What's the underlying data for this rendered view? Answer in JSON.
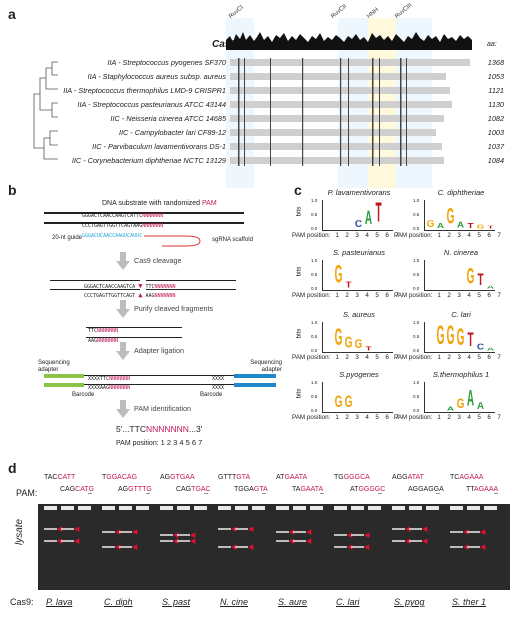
{
  "panel_a": {
    "letter": "a",
    "protein": "Cas9",
    "aa_header": "aa:",
    "domains": [
      "RuvCI",
      "RuvCII",
      "HNH",
      "RuvCIII"
    ],
    "rows": [
      {
        "strain": "IIA - Streptococcus pyogenes SF370",
        "aa": "1368"
      },
      {
        "strain": "IIA - Staphylococcus aureus subsp. aureus",
        "aa": "1053"
      },
      {
        "strain": "IIA - Streptococcus thermophilus LMD-9 CRISPR1",
        "aa": "1121"
      },
      {
        "strain": "IIA - Streptococcus pasteurianus ATCC 43144",
        "aa": "1130"
      },
      {
        "strain": "IIC - Neisseria cinerea ATCC 14685",
        "aa": "1082"
      },
      {
        "strain": "IIC - Campylobacter lari CF89-12",
        "aa": "1003"
      },
      {
        "strain": "IIC - Parvibaculum lavamentivorans DS-1",
        "aa": "1037"
      },
      {
        "strain": "IIC - Corynebacterium diphtheriae NCTC 13129",
        "aa": "1084"
      }
    ]
  },
  "panel_b": {
    "letter": "b",
    "title_prefix": "DNA substrate with randomized ",
    "title_pam": "PAM",
    "seq_top": "GGGACTCAACCAAGTCATTC",
    "seq_top_n": "NNNNNNN",
    "seq_bot": "CCCTGAGTTGGTTCAGTAAG",
    "seq_bot_n": "NNNNNNN",
    "guide_seq": "GGGACUCAACCAAGUCAUUC",
    "guide_label": "20-nt guide",
    "scaffold_label": "sgRNA scaffold",
    "step1": "Cas9 cleavage",
    "cleave_top": "GGGACTCAACCAAGTCA",
    "cleave_top_r": "TTC",
    "cleave_bot": "CCCTGAGTTGGTTCAGT",
    "cleave_bot_r": "AAG",
    "step2": "Purify cleaved fragments",
    "frag_top": "TTC",
    "frag_bot": "AAG",
    "frag_n": "NNNNNNN",
    "step3": "Adapter ligation",
    "seq_adapter": "Sequencing adapter",
    "barcode": "Barcode",
    "xxxx": "XXXX",
    "step4": "PAM identification",
    "pam_seq_prefix": "5'...TTC",
    "pam_seq_n": "NNNNNNN",
    "pam_seq_suffix": "...3'",
    "pam_position_label": "PAM position:",
    "pam_positions": "1 2 3 4 5 6 7"
  },
  "panel_c": {
    "letter": "c",
    "ylabel": "bits",
    "xlabel": "PAM position:",
    "positions": [
      "1",
      "2",
      "3",
      "4",
      "5",
      "6",
      "7"
    ],
    "yticks": [
      "0.0",
      "0.5",
      "1.0"
    ],
    "logos": [
      {
        "name": "P. lavamentivorans"
      },
      {
        "name": "C. diphtheriae"
      },
      {
        "name": "S. pasteurianus"
      },
      {
        "name": "N. cinerea"
      },
      {
        "name": "S. aureus"
      },
      {
        "name": "C. lari"
      },
      {
        "name": "S.pyogenes"
      },
      {
        "name": "S.thermophilus 1"
      }
    ]
  },
  "panel_d": {
    "letter": "d",
    "pam_label": "PAM:",
    "lysate_label": "lysate",
    "cas9_label": "Cas9:",
    "groups": [
      {
        "cas": "P. lava",
        "pams": [
          [
            "TAC",
            "CATT"
          ],
          [
            "CAG",
            "CATG"
          ]
        ]
      },
      {
        "cas": "C. diph",
        "pams": [
          [
            "T",
            "GGACAG"
          ],
          [
            "AG",
            "GTTTG"
          ]
        ]
      },
      {
        "cas": "S. past",
        "pams": [
          [
            "AG",
            "GTGAA"
          ],
          [
            "CAG",
            "TGAC"
          ]
        ]
      },
      {
        "cas": "N. cine",
        "pams": [
          [
            "GTTT",
            "GTA"
          ],
          [
            "TGGA",
            "GTA"
          ]
        ]
      },
      {
        "cas": "S. aure",
        "pams": [
          [
            "AT",
            "GAATA"
          ],
          [
            "TA",
            "GAATA"
          ]
        ]
      },
      {
        "cas": "C. lari",
        "pams": [
          [
            "TG",
            "GGGCA"
          ],
          [
            "AT",
            "GGGGC"
          ]
        ]
      },
      {
        "cas": "S. pyog",
        "pams": [
          [
            "AGG",
            "ATAT"
          ],
          [
            "AGGAGGA",
            ""
          ]
        ]
      },
      {
        "cas": "S. ther 1",
        "pams": [
          [
            "TC",
            "AGAAA"
          ],
          [
            "TT",
            "AGAAA"
          ]
        ]
      }
    ],
    "dash": "–"
  },
  "colors": {
    "pam": "#c2185b",
    "guide": "#1ea7d8",
    "adapter_green": "#8bc34a",
    "adapter_blue": "#1e88c8",
    "arrow_red": "#e0102f"
  }
}
